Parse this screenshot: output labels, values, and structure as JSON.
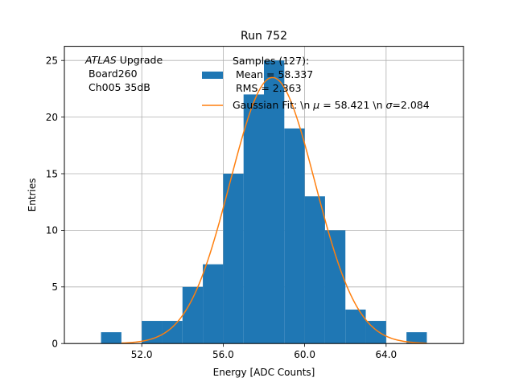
{
  "chart_data": {
    "type": "bar",
    "title": "Run 752",
    "xlabel": "Energy [ADC Counts]",
    "ylabel": "Entries",
    "xlim": [
      48.2,
      67.8
    ],
    "ylim": [
      0,
      26.25
    ],
    "grid": true,
    "xticks": [
      52,
      56,
      60,
      64
    ],
    "xtick_labels": [
      "52.0",
      "56.0",
      "60.0",
      "64.0"
    ],
    "yticks": [
      0,
      5,
      10,
      15,
      20,
      25
    ],
    "ytick_labels": [
      "0",
      "5",
      "10",
      "15",
      "20",
      "25"
    ],
    "bar_color": "#1f77b4",
    "fit_color": "#ff7f0e",
    "histogram": {
      "name": "Samples (127):",
      "bin_edges": [
        50,
        51,
        52,
        53,
        54,
        55,
        56,
        57,
        58,
        59,
        60,
        61,
        62,
        63,
        64,
        65,
        66
      ],
      "counts": [
        1,
        0,
        2,
        2,
        5,
        7,
        15,
        22,
        25,
        19,
        13,
        10,
        3,
        2,
        0,
        1
      ]
    },
    "fit": {
      "name": "Gaussian Fit",
      "mu": 58.421,
      "sigma": 2.084,
      "amplitude": 23.5,
      "x_range": [
        51,
        66
      ]
    },
    "legend": {
      "position": "top-right",
      "hist_lines": [
        "Samples (127):",
        " Mean = 58.337",
        " RMS = 2.363"
      ],
      "fit_label_prefix": "Gaussian Fit: \\n ",
      "fit_mu_symbol": "μ",
      "fit_mu_value": " = 58.421 \\n ",
      "fit_sigma_symbol": "σ",
      "fit_sigma_value": "=2.084"
    },
    "annotation": {
      "position": "top-left",
      "italic": "ATLAS",
      "rest": " Upgrade",
      "line2": " Board260",
      "line3": " Ch005 35dB"
    }
  }
}
